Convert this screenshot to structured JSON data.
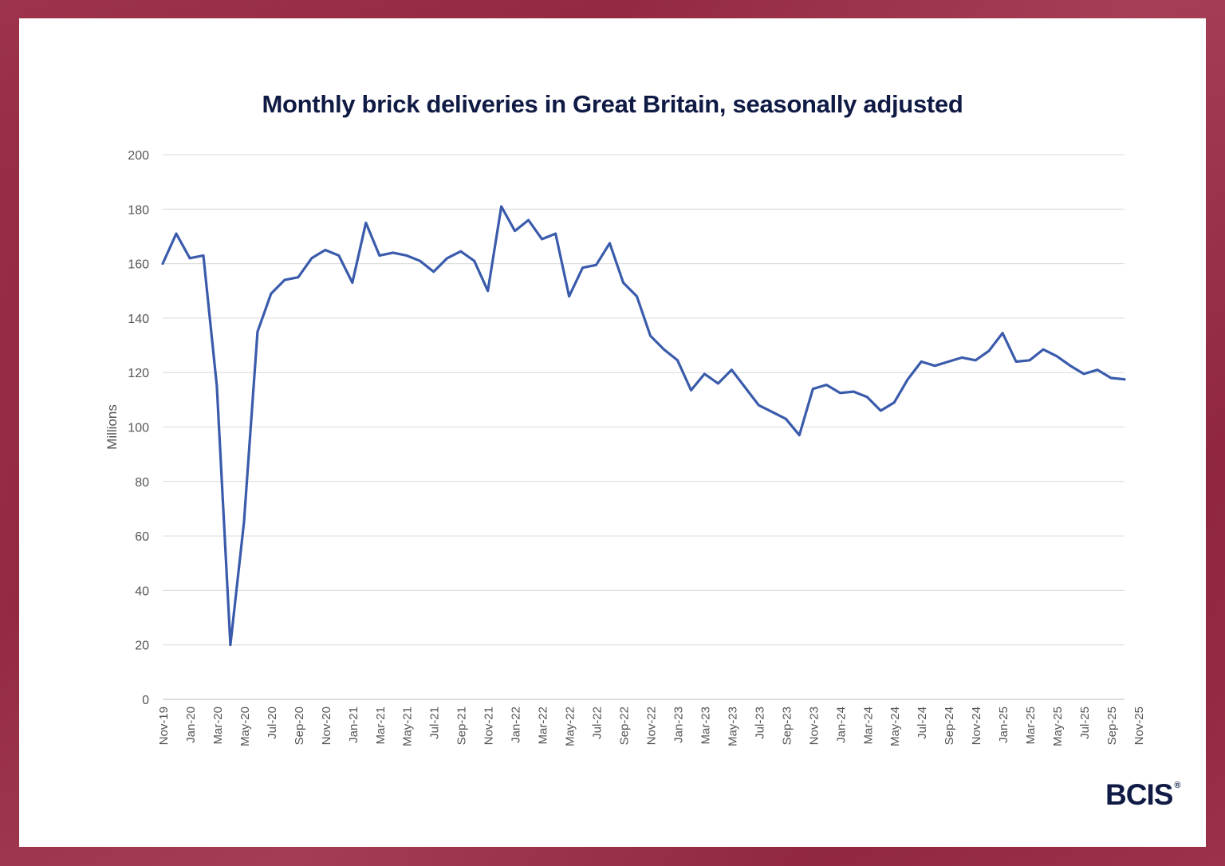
{
  "brand": {
    "name": "BCIS",
    "mark": "®"
  },
  "colors": {
    "line": "#3a5bab",
    "grid": "#d9d9d9",
    "title": "#0f1a45",
    "frame": "#9a2640"
  },
  "chart_data": {
    "type": "line",
    "title": "Monthly brick deliveries in Great Britain, seasonally adjusted",
    "xlabel": "",
    "ylabel": "Millions",
    "ylim": [
      0,
      200
    ],
    "yticks": [
      0,
      20,
      40,
      60,
      80,
      100,
      120,
      140,
      160,
      180,
      200
    ],
    "grid": true,
    "xtick_labels": [
      "Nov-19",
      "Jan-20",
      "Mar-20",
      "May-20",
      "Jul-20",
      "Sep-20",
      "Nov-20",
      "Jan-21",
      "Mar-21",
      "May-21",
      "Jul-21",
      "Sep-21",
      "Nov-21",
      "Jan-22",
      "Mar-22",
      "May-22",
      "Jul-22",
      "Sep-22",
      "Nov-22",
      "Jan-23",
      "Mar-23",
      "May-23",
      "Jul-23",
      "Sep-23",
      "Nov-23",
      "Jan-24",
      "Mar-24",
      "May-24",
      "Jul-24",
      "Sep-24",
      "Nov-24",
      "Jan-25",
      "Mar-25",
      "May-25",
      "Jul-25",
      "Sep-25",
      "Nov-25"
    ],
    "series": [
      {
        "name": "Brick deliveries",
        "values": [
          160,
          171,
          162,
          163,
          115,
          20,
          65,
          135,
          149,
          154,
          155,
          162,
          165,
          163,
          153,
          175,
          163,
          164,
          163,
          161,
          157,
          162,
          164.5,
          161,
          150,
          181,
          172,
          176,
          169,
          171,
          148,
          158.5,
          159.5,
          167.5,
          153,
          148,
          133.5,
          128.5,
          124.5,
          113.5,
          119.5,
          116,
          121,
          114.5,
          108,
          105.5,
          103,
          97,
          114,
          115.5,
          112.5,
          113,
          111,
          106,
          109,
          117.5,
          124,
          122.5,
          124,
          125.5,
          124.5,
          128,
          134.5,
          124,
          124.5,
          128.5,
          126,
          122.5,
          119.5,
          121,
          118,
          117.5
        ]
      }
    ]
  }
}
